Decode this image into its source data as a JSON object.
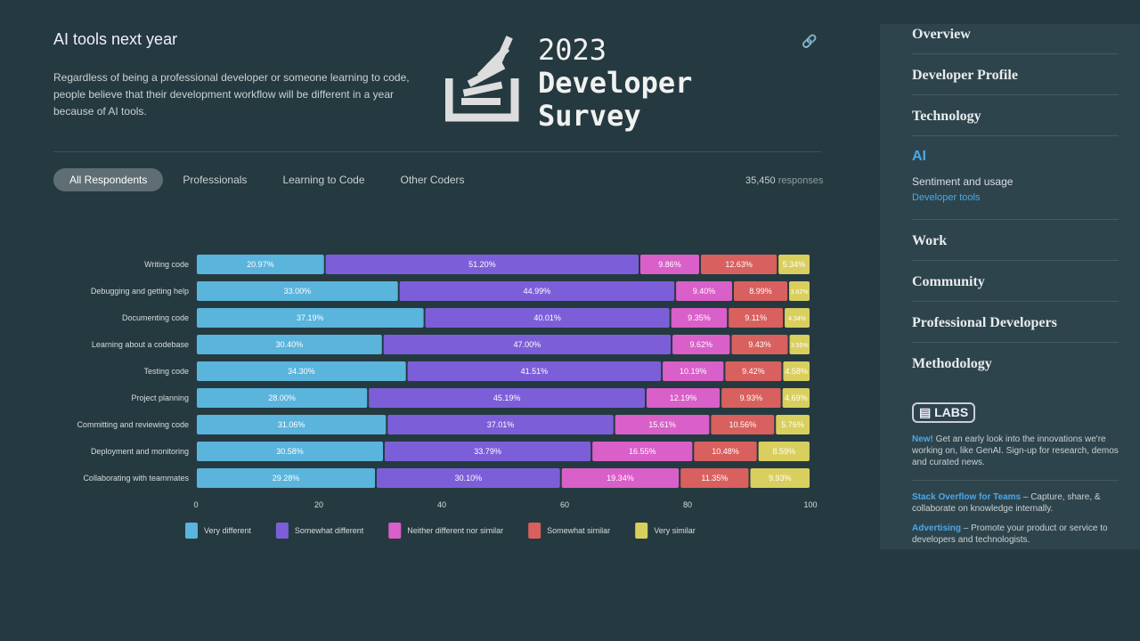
{
  "header": {
    "title": "AI tools next year",
    "description": "Regardless of being a professional developer or someone learning to code, people believe that their development workflow will be different in a year because of AI tools.",
    "logo_year": "2023",
    "logo_line1": "Developer",
    "logo_line2": "Survey",
    "link_icon": "link-icon"
  },
  "tabs": [
    "All Respondents",
    "Professionals",
    "Learning to Code",
    "Other Coders"
  ],
  "responses": {
    "count": "35,450",
    "label": "responses"
  },
  "chart_data": {
    "type": "bar",
    "orientation": "horizontal",
    "stacked": true,
    "categories": [
      "Writing code",
      "Debugging and getting help",
      "Documenting code",
      "Learning about a codebase",
      "Testing code",
      "Project planning",
      "Committing and reviewing code",
      "Deployment and monitoring",
      "Collaborating with teammates"
    ],
    "series": [
      {
        "name": "Very different",
        "color": "#5ab4dc",
        "values": [
          20.97,
          33.0,
          37.19,
          30.4,
          34.3,
          28.0,
          31.06,
          30.58,
          29.28
        ]
      },
      {
        "name": "Somewhat different",
        "color": "#7c5fd8",
        "values": [
          51.2,
          44.99,
          40.01,
          47.0,
          41.51,
          45.19,
          37.01,
          33.79,
          30.1
        ]
      },
      {
        "name": "Neither different nor similar",
        "color": "#d95fc9",
        "values": [
          9.86,
          9.4,
          9.35,
          9.62,
          10.19,
          12.19,
          15.61,
          16.55,
          19.34
        ]
      },
      {
        "name": "Somewhat similar",
        "color": "#d8605e",
        "values": [
          12.63,
          8.99,
          9.11,
          9.43,
          9.42,
          9.93,
          10.56,
          10.48,
          11.35
        ]
      },
      {
        "name": "Very similar",
        "color": "#d9cf5e",
        "values": [
          5.34,
          3.62,
          4.34,
          3.55,
          4.58,
          4.69,
          5.76,
          8.59,
          9.93
        ]
      }
    ],
    "xticks": [
      0,
      20,
      40,
      60,
      80,
      100
    ],
    "xlim": [
      0,
      100
    ],
    "legend": "bottom"
  },
  "sidebar": {
    "items": [
      "Overview",
      "Developer Profile",
      "Technology",
      "Work",
      "Community",
      "Professional Developers",
      "Methodology"
    ],
    "ai": {
      "label": "AI",
      "sub1": "Sentiment and usage",
      "sub2": "Developer tools"
    },
    "labs": "LABS",
    "blurbs": [
      {
        "link": "New!",
        "text": " Get an early look into the innovations we're working on, like GenAI. Sign-up for research, demos and curated news."
      },
      {
        "link": "Stack Overflow for Teams",
        "text": " – Capture, share, & collaborate on knowledge internally."
      },
      {
        "link": "Advertising",
        "text": " – Promote your product or service to developers and technologists."
      }
    ]
  }
}
